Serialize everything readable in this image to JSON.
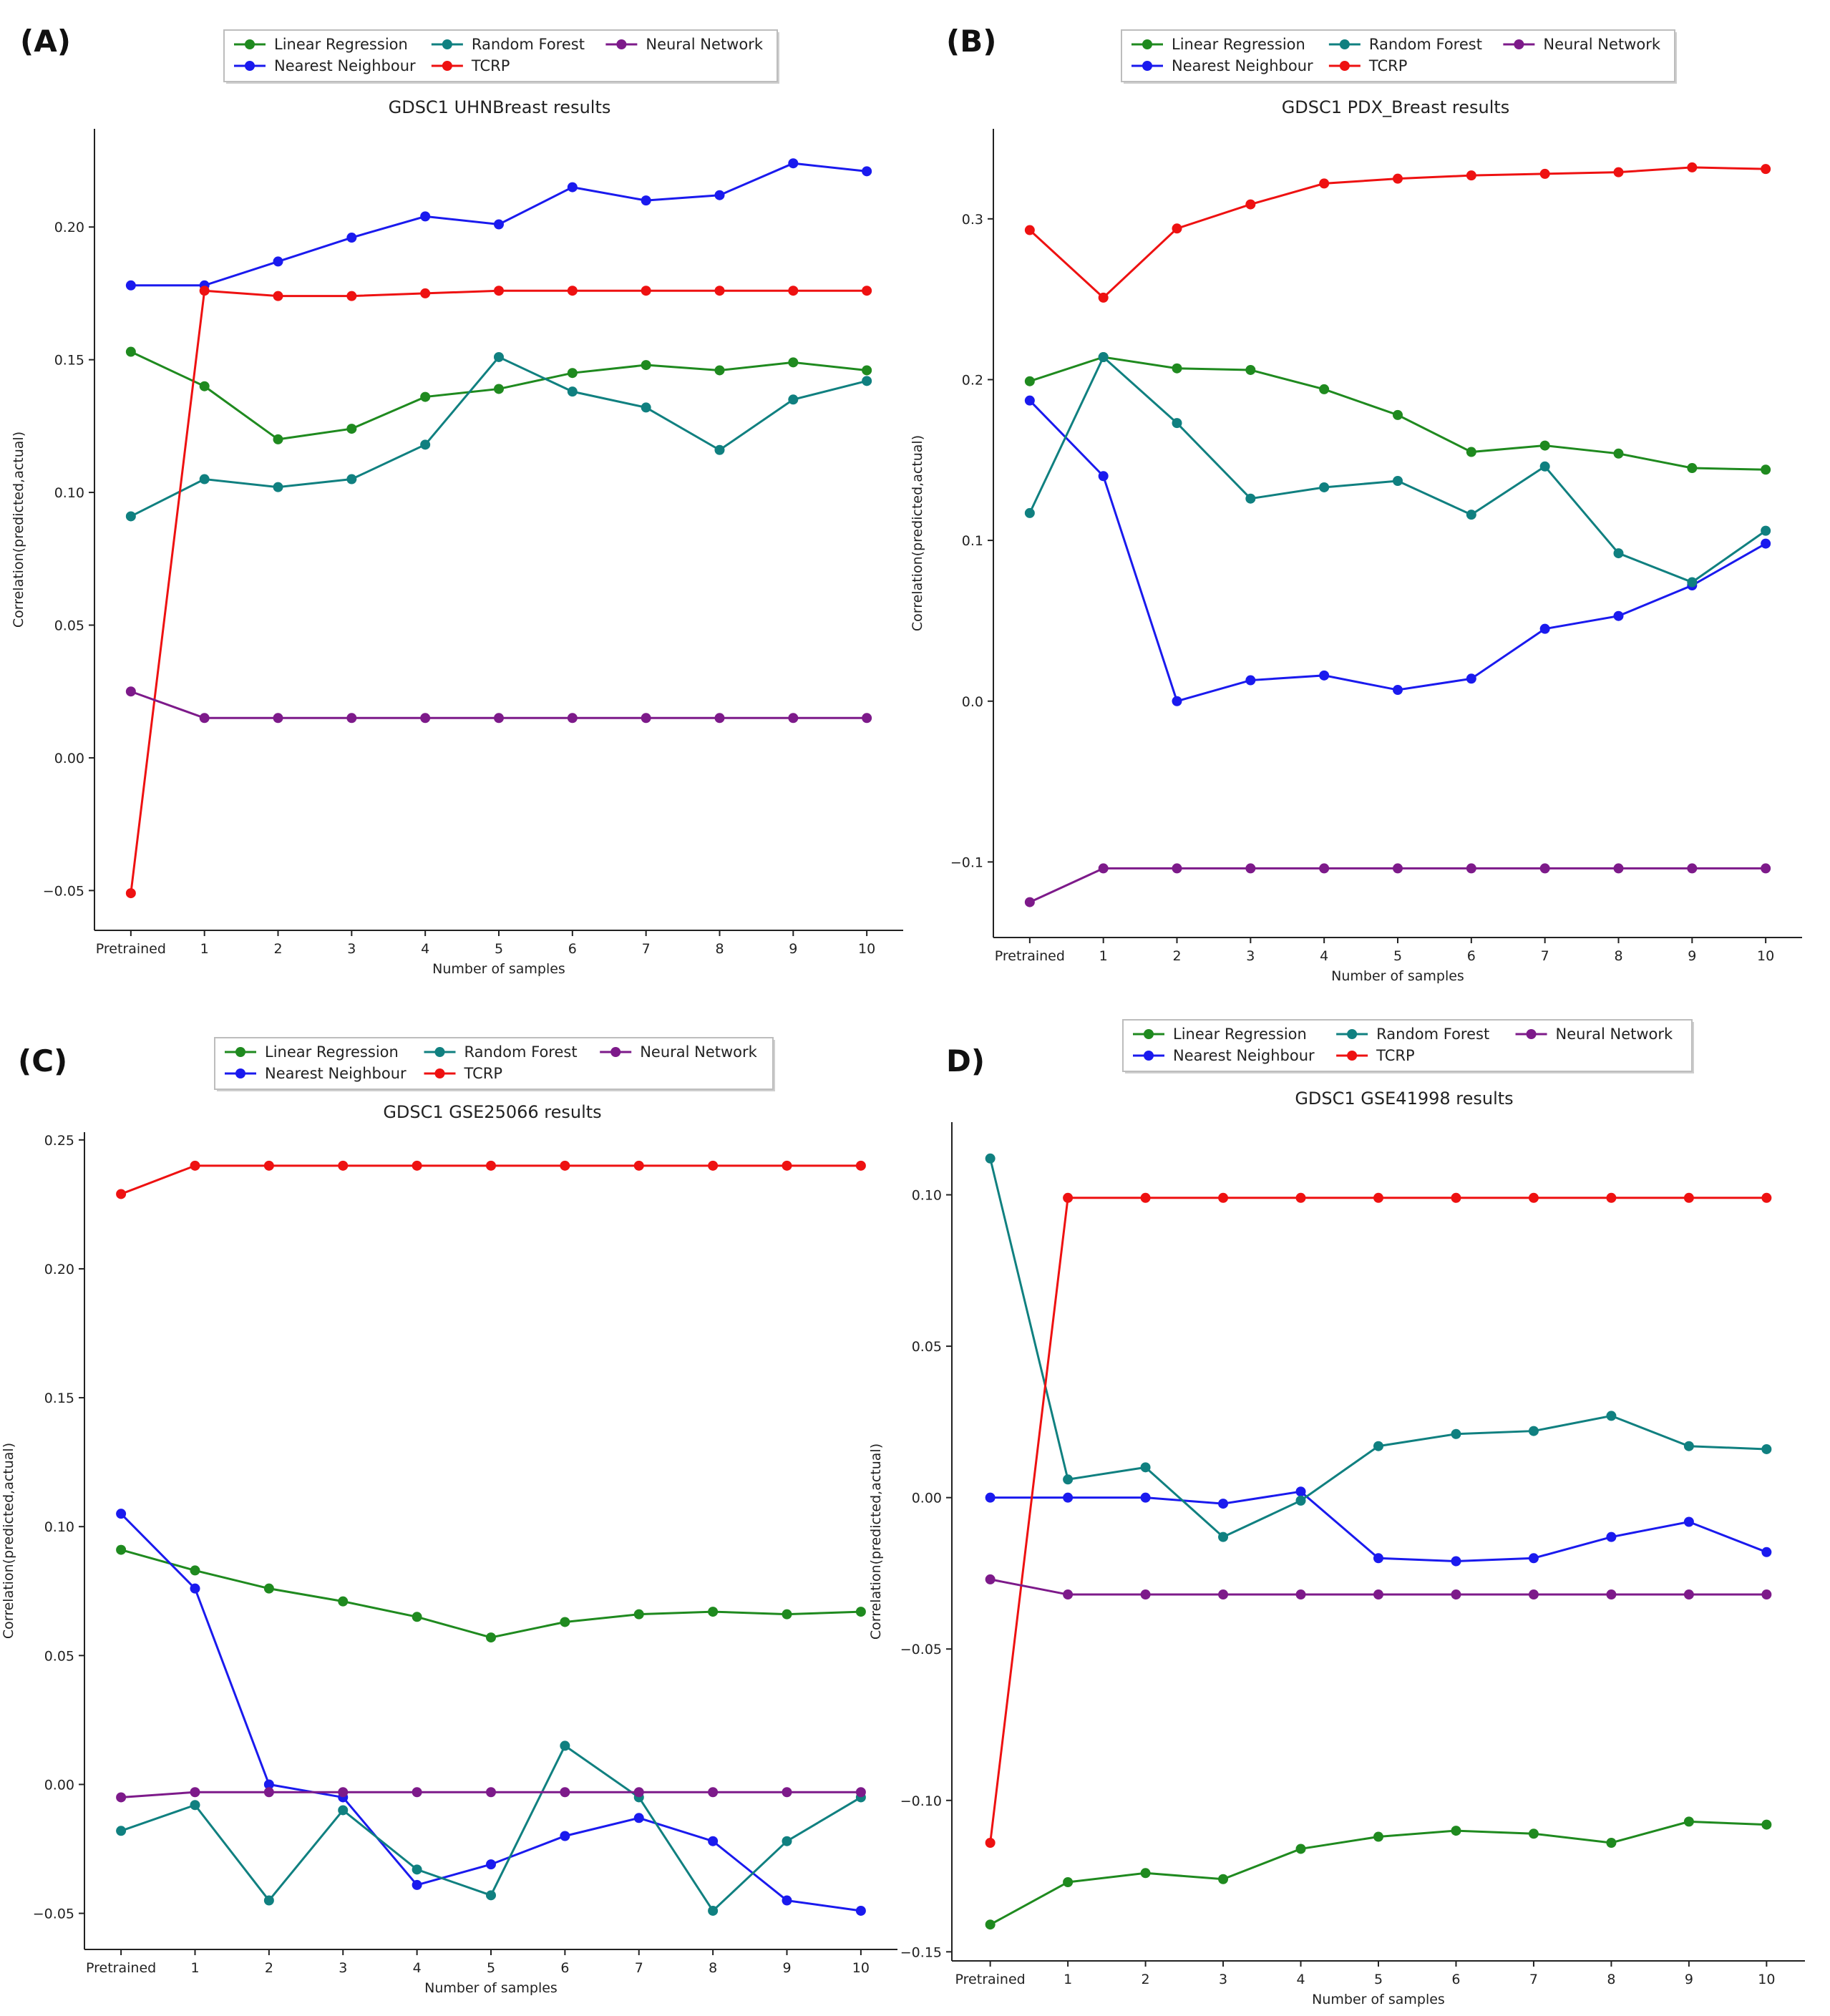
{
  "figure": {
    "colors": {
      "Linear Regression": "#1f8a1f",
      "Nearest Neighbour": "#1a1aee",
      "Random Forest": "#108080",
      "TCRP": "#ee1111",
      "Neural Network": "#7d1a8a"
    },
    "legend_order": [
      "Linear Regression",
      "Nearest Neighbour",
      "Random Forest",
      "TCRP",
      "Neural Network"
    ]
  },
  "chart_data": [
    {
      "panel_label": "(A)",
      "type": "line",
      "title": "GDSC1 UHNBreast results",
      "xlabel": "Number of samples",
      "ylabel": "Correlation(predicted,actual)",
      "categories": [
        "Pretrained",
        "1",
        "2",
        "3",
        "4",
        "5",
        "6",
        "7",
        "8",
        "9",
        "10"
      ],
      "ylim": [
        -0.065,
        0.237
      ],
      "yticks": [
        -0.05,
        0.0,
        0.05,
        0.1,
        0.15,
        0.2
      ],
      "ytick_labels": [
        "−0.05",
        "0.00",
        "0.05",
        "0.10",
        "0.15",
        "0.20"
      ],
      "legend_placement": "top",
      "series": [
        {
          "name": "Linear Regression",
          "values": [
            0.153,
            0.14,
            0.12,
            0.124,
            0.136,
            0.139,
            0.145,
            0.148,
            0.146,
            0.149,
            0.146
          ]
        },
        {
          "name": "Nearest Neighbour",
          "values": [
            0.178,
            0.178,
            0.187,
            0.196,
            0.204,
            0.201,
            0.215,
            0.21,
            0.212,
            0.224,
            0.221
          ]
        },
        {
          "name": "Random Forest",
          "values": [
            0.091,
            0.105,
            0.102,
            0.105,
            0.118,
            0.151,
            0.138,
            0.132,
            0.116,
            0.135,
            0.142
          ]
        },
        {
          "name": "TCRP",
          "values": [
            -0.051,
            0.176,
            0.174,
            0.174,
            0.175,
            0.176,
            0.176,
            0.176,
            0.176,
            0.176,
            0.176
          ]
        },
        {
          "name": "Neural Network",
          "values": [
            0.025,
            0.015,
            0.015,
            0.015,
            0.015,
            0.015,
            0.015,
            0.015,
            0.015,
            0.015,
            0.015
          ]
        }
      ]
    },
    {
      "panel_label": "(B)",
      "type": "line",
      "title": "GDSC1 PDX_Breast results",
      "xlabel": "Number of samples",
      "ylabel": "Correlation(predicted,actual)",
      "categories": [
        "Pretrained",
        "1",
        "2",
        "3",
        "4",
        "5",
        "6",
        "7",
        "8",
        "9",
        "10"
      ],
      "ylim": [
        -0.147,
        0.356
      ],
      "yticks": [
        -0.1,
        0.0,
        0.1,
        0.2,
        0.3
      ],
      "ytick_labels": [
        "−0.1",
        "0.0",
        "0.1",
        "0.2",
        "0.3"
      ],
      "legend_placement": "top",
      "series": [
        {
          "name": "Linear Regression",
          "values": [
            0.199,
            0.214,
            0.207,
            0.206,
            0.194,
            0.178,
            0.155,
            0.159,
            0.154,
            0.145,
            0.144
          ]
        },
        {
          "name": "Nearest Neighbour",
          "values": [
            0.187,
            0.14,
            0.0,
            0.013,
            0.016,
            0.007,
            0.014,
            0.045,
            0.053,
            0.072,
            0.098
          ]
        },
        {
          "name": "Random Forest",
          "values": [
            0.117,
            0.214,
            0.173,
            0.126,
            0.133,
            0.137,
            0.116,
            0.146,
            0.092,
            0.074,
            0.106
          ]
        },
        {
          "name": "TCRP",
          "values": [
            0.293,
            0.251,
            0.294,
            0.309,
            0.322,
            0.325,
            0.327,
            0.328,
            0.329,
            0.332,
            0.331
          ]
        },
        {
          "name": "Neural Network",
          "values": [
            -0.125,
            -0.104,
            -0.104,
            -0.104,
            -0.104,
            -0.104,
            -0.104,
            -0.104,
            -0.104,
            -0.104,
            -0.104
          ]
        }
      ]
    },
    {
      "panel_label": "(C)",
      "type": "line",
      "title": "GDSC1 GSE25066 results",
      "xlabel": "Number of samples",
      "ylabel": "Correlation(predicted,actual)",
      "categories": [
        "Pretrained",
        "1",
        "2",
        "3",
        "4",
        "5",
        "6",
        "7",
        "8",
        "9",
        "10"
      ],
      "ylim": [
        -0.064,
        0.253
      ],
      "yticks": [
        -0.05,
        0.0,
        0.05,
        0.1,
        0.15,
        0.2,
        0.25
      ],
      "ytick_labels": [
        "−0.05",
        "0.00",
        "0.05",
        "0.10",
        "0.15",
        "0.20",
        "0.25"
      ],
      "legend_placement": "top",
      "series": [
        {
          "name": "Linear Regression",
          "values": [
            0.091,
            0.083,
            0.076,
            0.071,
            0.065,
            0.057,
            0.063,
            0.066,
            0.067,
            0.066,
            0.067
          ]
        },
        {
          "name": "Nearest Neighbour",
          "values": [
            0.105,
            0.076,
            0.0,
            -0.005,
            -0.039,
            -0.031,
            -0.02,
            -0.013,
            -0.022,
            -0.045,
            -0.049
          ]
        },
        {
          "name": "Random Forest",
          "values": [
            -0.018,
            -0.008,
            -0.045,
            -0.01,
            -0.033,
            -0.043,
            0.015,
            -0.005,
            -0.049,
            -0.022,
            -0.005
          ]
        },
        {
          "name": "TCRP",
          "values": [
            0.229,
            0.24,
            0.24,
            0.24,
            0.24,
            0.24,
            0.24,
            0.24,
            0.24,
            0.24,
            0.24
          ]
        },
        {
          "name": "Neural Network",
          "values": [
            -0.005,
            -0.003,
            -0.003,
            -0.003,
            -0.003,
            -0.003,
            -0.003,
            -0.003,
            -0.003,
            -0.003,
            -0.003
          ]
        }
      ]
    },
    {
      "panel_label": "D)",
      "type": "line",
      "title": "GDSC1 GSE41998 results",
      "xlabel": "Number of samples",
      "ylabel": "Correlation(predicted,actual)",
      "categories": [
        "Pretrained",
        "1",
        "2",
        "3",
        "4",
        "5",
        "6",
        "7",
        "8",
        "9",
        "10"
      ],
      "ylim": [
        -0.153,
        0.124
      ],
      "yticks": [
        -0.15,
        -0.1,
        -0.05,
        0.0,
        0.05,
        0.1
      ],
      "ytick_labels": [
        "−0.15",
        "−0.10",
        "−0.05",
        "0.00",
        "0.05",
        "0.10"
      ],
      "legend_placement": "top",
      "series": [
        {
          "name": "Linear Regression",
          "values": [
            -0.141,
            -0.127,
            -0.124,
            -0.126,
            -0.116,
            -0.112,
            -0.11,
            -0.111,
            -0.114,
            -0.107,
            -0.108
          ]
        },
        {
          "name": "Nearest Neighbour",
          "values": [
            0.0,
            0.0,
            0.0,
            -0.002,
            0.002,
            -0.02,
            -0.021,
            -0.02,
            -0.013,
            -0.008,
            -0.018
          ]
        },
        {
          "name": "Random Forest",
          "values": [
            0.112,
            0.006,
            0.01,
            -0.013,
            -0.001,
            0.017,
            0.021,
            0.022,
            0.027,
            0.017,
            0.016
          ]
        },
        {
          "name": "TCRP",
          "values": [
            -0.114,
            0.099,
            0.099,
            0.099,
            0.099,
            0.099,
            0.099,
            0.099,
            0.099,
            0.099,
            0.099
          ]
        },
        {
          "name": "Neural Network",
          "values": [
            -0.027,
            -0.032,
            -0.032,
            -0.032,
            -0.032,
            -0.032,
            -0.032,
            -0.032,
            -0.032,
            -0.032,
            -0.032
          ]
        }
      ]
    }
  ]
}
